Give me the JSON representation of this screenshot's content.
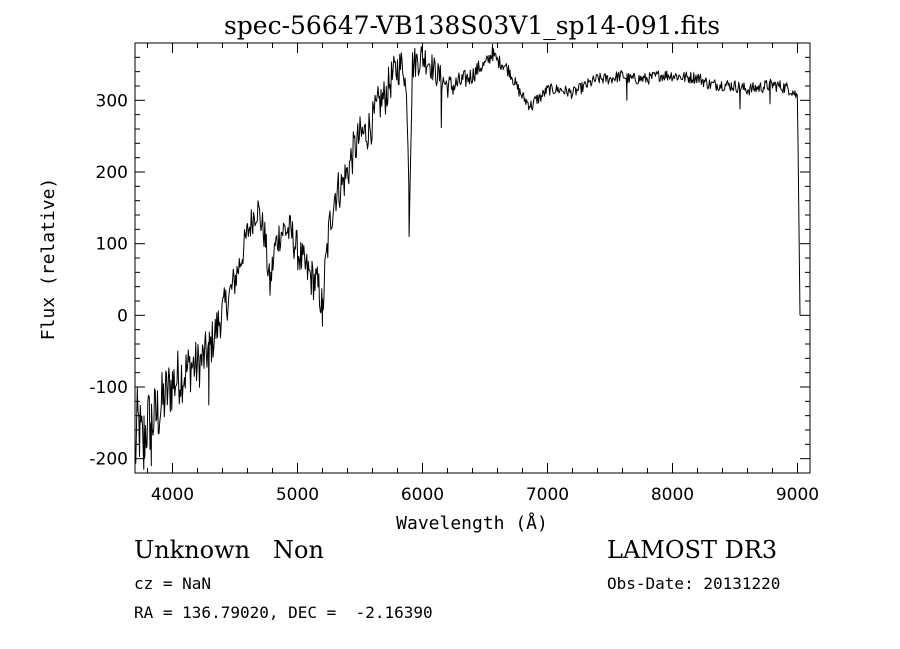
{
  "chart_data": {
    "type": "line",
    "title": "spec-56647-VB138S03V1_sp14-091.fits",
    "xlabel": "Wavelength (Å)",
    "ylabel": "Flux (relative)",
    "xlim": [
      3700,
      9100
    ],
    "ylim": [
      -220,
      380
    ],
    "xticks": [
      4000,
      5000,
      6000,
      7000,
      8000,
      9000
    ],
    "yticks": [
      -200,
      -100,
      0,
      100,
      200,
      300
    ],
    "grid": false,
    "line_color": "#000000",
    "anchors": [
      [
        3700,
        -200
      ],
      [
        3720,
        -150
      ],
      [
        3760,
        -180
      ],
      [
        3800,
        -150
      ],
      [
        3850,
        -145
      ],
      [
        3900,
        -130
      ],
      [
        3950,
        -110
      ],
      [
        4000,
        -95
      ],
      [
        4050,
        -85
      ],
      [
        4100,
        -80
      ],
      [
        4150,
        -70
      ],
      [
        4200,
        -70
      ],
      [
        4250,
        -60
      ],
      [
        4300,
        -45
      ],
      [
        4350,
        -20
      ],
      [
        4400,
        5
      ],
      [
        4450,
        25
      ],
      [
        4500,
        50
      ],
      [
        4550,
        80
      ],
      [
        4600,
        115
      ],
      [
        4650,
        140
      ],
      [
        4680,
        150
      ],
      [
        4710,
        130
      ],
      [
        4740,
        110
      ],
      [
        4760,
        70
      ],
      [
        4780,
        40
      ],
      [
        4790,
        55
      ],
      [
        4820,
        95
      ],
      [
        4860,
        115
      ],
      [
        4900,
        120
      ],
      [
        4950,
        115
      ],
      [
        5000,
        90
      ],
      [
        5050,
        70
      ],
      [
        5100,
        55
      ],
      [
        5150,
        45
      ],
      [
        5180,
        30
      ],
      [
        5200,
        5
      ],
      [
        5220,
        60
      ],
      [
        5260,
        130
      ],
      [
        5300,
        170
      ],
      [
        5350,
        180
      ],
      [
        5400,
        200
      ],
      [
        5450,
        230
      ],
      [
        5500,
        250
      ],
      [
        5550,
        255
      ],
      [
        5600,
        270
      ],
      [
        5650,
        295
      ],
      [
        5700,
        305
      ],
      [
        5750,
        330
      ],
      [
        5800,
        345
      ],
      [
        5850,
        350
      ],
      [
        5880,
        280
      ],
      [
        5895,
        150
      ],
      [
        5905,
        240
      ],
      [
        5920,
        350
      ],
      [
        5950,
        355
      ],
      [
        6000,
        360
      ],
      [
        6050,
        355
      ],
      [
        6100,
        340
      ],
      [
        6150,
        330
      ],
      [
        6200,
        320
      ],
      [
        6250,
        320
      ],
      [
        6300,
        325
      ],
      [
        6350,
        330
      ],
      [
        6400,
        335
      ],
      [
        6450,
        345
      ],
      [
        6500,
        350
      ],
      [
        6560,
        365
      ],
      [
        6600,
        355
      ],
      [
        6650,
        350
      ],
      [
        6700,
        340
      ],
      [
        6750,
        320
      ],
      [
        6800,
        305
      ],
      [
        6850,
        295
      ],
      [
        6880,
        292
      ],
      [
        6900,
        300
      ],
      [
        6950,
        305
      ],
      [
        7000,
        315
      ],
      [
        7100,
        315
      ],
      [
        7200,
        310
      ],
      [
        7300,
        320
      ],
      [
        7400,
        330
      ],
      [
        7500,
        330
      ],
      [
        7600,
        335
      ],
      [
        7650,
        330
      ],
      [
        7700,
        330
      ],
      [
        7800,
        330
      ],
      [
        7900,
        335
      ],
      [
        8000,
        335
      ],
      [
        8100,
        332
      ],
      [
        8200,
        332
      ],
      [
        8300,
        322
      ],
      [
        8400,
        322
      ],
      [
        8500,
        320
      ],
      [
        8600,
        315
      ],
      [
        8700,
        318
      ],
      [
        8800,
        322
      ],
      [
        8900,
        318
      ],
      [
        8950,
        315
      ],
      [
        9000,
        305
      ],
      [
        9010,
        150
      ],
      [
        9020,
        0
      ]
    ],
    "features": [
      {
        "x": 3770,
        "y": -215
      },
      {
        "x": 3830,
        "y": -210
      },
      {
        "x": 4290,
        "y": -125
      },
      {
        "x": 4780,
        "y": 30
      },
      {
        "x": 5200,
        "y": -15
      },
      {
        "x": 5893,
        "y": 110
      },
      {
        "x": 5990,
        "y": 375
      },
      {
        "x": 6150,
        "y": 262
      },
      {
        "x": 6560,
        "y": 378
      },
      {
        "x": 7635,
        "y": 300
      },
      {
        "x": 8540,
        "y": 288
      },
      {
        "x": 8780,
        "y": 295
      }
    ],
    "noise_amplitude": [
      [
        3700,
        55
      ],
      [
        4200,
        35
      ],
      [
        4600,
        22
      ],
      [
        5200,
        30
      ],
      [
        5700,
        28
      ],
      [
        6000,
        22
      ],
      [
        6500,
        10
      ],
      [
        7000,
        8
      ],
      [
        9000,
        9
      ]
    ]
  },
  "info": {
    "object_class": "Unknown",
    "object_subclass": "Non",
    "redshift": "cz = NaN",
    "coordinates": "RA = 136.79020, DEC =  -2.16390",
    "survey": "LAMOST DR3",
    "obs_date": "Obs-Date: 20131220"
  }
}
